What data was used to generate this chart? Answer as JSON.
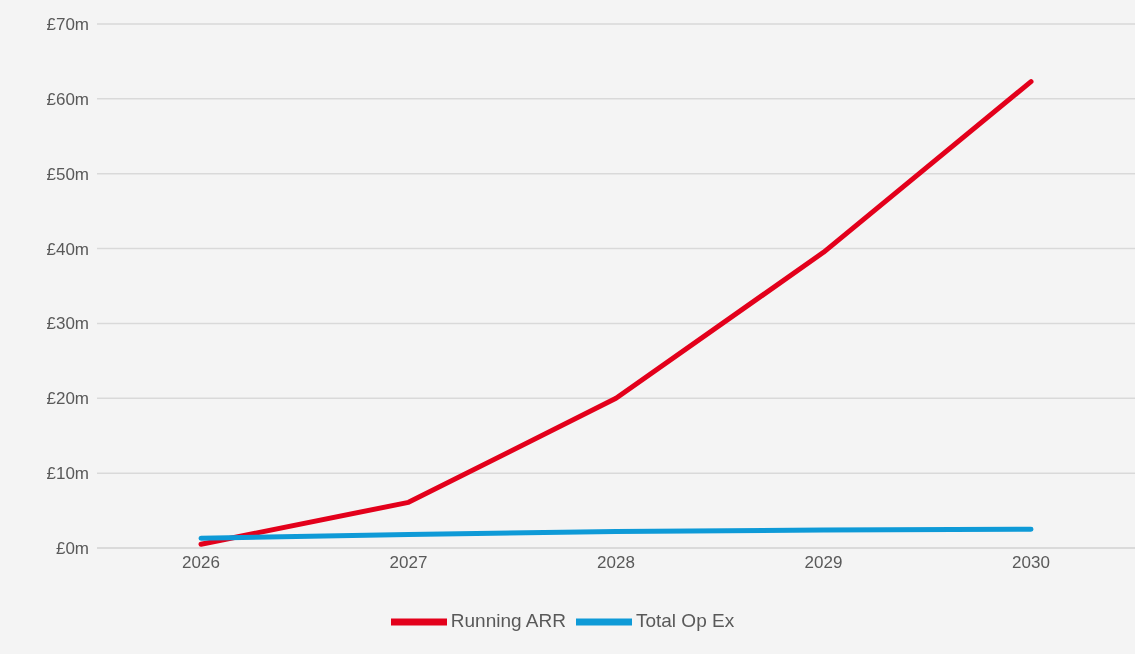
{
  "chart_data": {
    "type": "line",
    "categories": [
      "2026",
      "2027",
      "2028",
      "2029",
      "2030"
    ],
    "series": [
      {
        "name": "Running ARR",
        "color": "#e3001b",
        "values": [
          0.5,
          6.1,
          20.0,
          39.5,
          62.3
        ]
      },
      {
        "name": "Total Op Ex",
        "color": "#0e9ad7",
        "values": [
          1.3,
          1.8,
          2.2,
          2.4,
          2.5
        ]
      }
    ],
    "ylim": [
      0,
      70
    ],
    "yticks": [
      {
        "value": 0,
        "label": "£0m"
      },
      {
        "value": 10,
        "label": "£10m"
      },
      {
        "value": 20,
        "label": "£20m"
      },
      {
        "value": 30,
        "label": "£30m"
      },
      {
        "value": 40,
        "label": "£40m"
      },
      {
        "value": 50,
        "label": "£50m"
      },
      {
        "value": 60,
        "label": "£60m"
      },
      {
        "value": 70,
        "label": "£70m"
      }
    ],
    "grid": "y",
    "legend": "bottom",
    "marker": "none",
    "line_style": "solid"
  }
}
